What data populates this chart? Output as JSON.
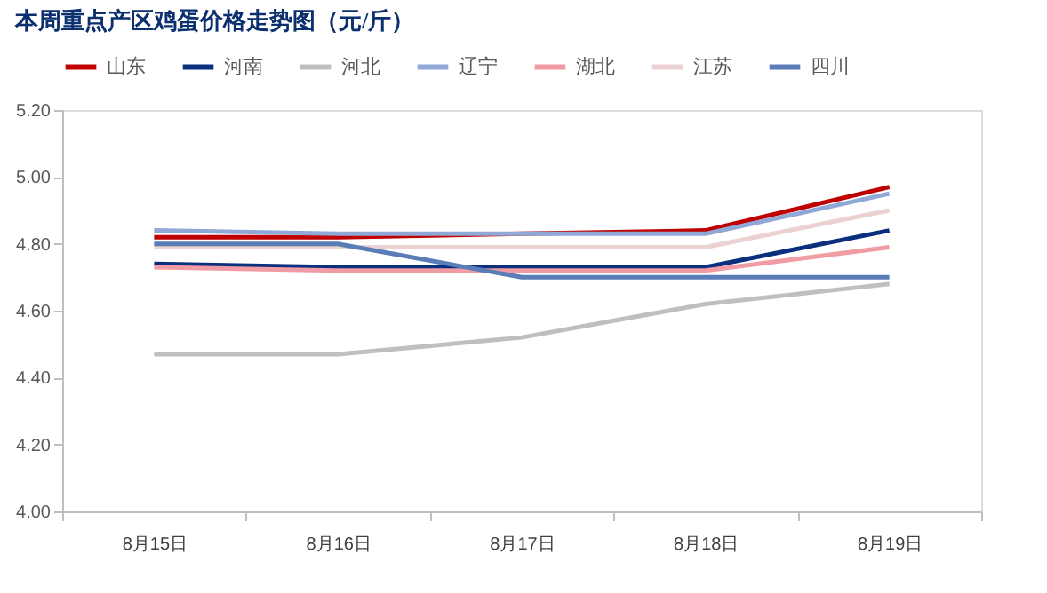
{
  "chart_data": {
    "type": "line",
    "title": "本周重点产区鸡蛋价格走势图（元/斤）",
    "categories": [
      "8月15日",
      "8月16日",
      "8月17日",
      "8月18日",
      "8月19日"
    ],
    "series": [
      {
        "name": "山东",
        "color": "#c00000",
        "values": [
          4.82,
          4.82,
          4.83,
          4.84,
          4.97
        ]
      },
      {
        "name": "河南",
        "color": "#0b2f7f",
        "values": [
          4.74,
          4.73,
          4.73,
          4.73,
          4.84
        ]
      },
      {
        "name": "河北",
        "color": "#bfbfbf",
        "values": [
          4.47,
          4.47,
          4.52,
          4.62,
          4.68
        ]
      },
      {
        "name": "辽宁",
        "color": "#8fa8d6",
        "values": [
          4.84,
          4.83,
          4.83,
          4.83,
          4.95
        ]
      },
      {
        "name": "湖北",
        "color": "#f19ba4",
        "values": [
          4.73,
          4.72,
          4.72,
          4.72,
          4.79
        ]
      },
      {
        "name": "江苏",
        "color": "#ecd1d3",
        "values": [
          4.79,
          4.79,
          4.79,
          4.79,
          4.9
        ]
      },
      {
        "name": "四川",
        "color": "#5a7db8",
        "values": [
          4.8,
          4.8,
          4.7,
          4.7,
          4.7
        ]
      }
    ],
    "ylim": [
      4.0,
      5.2
    ],
    "yticks": [
      {
        "value": 4.0,
        "label": "4.00"
      },
      {
        "value": 4.2,
        "label": "4.20"
      },
      {
        "value": 4.4,
        "label": "4.40"
      },
      {
        "value": 4.6,
        "label": "4.60"
      },
      {
        "value": 4.8,
        "label": "4.80"
      },
      {
        "value": 5.0,
        "label": "5.00"
      },
      {
        "value": 5.2,
        "label": "5.20"
      }
    ],
    "grid": false,
    "legend": "top",
    "marker": "none",
    "line_style": "solid"
  }
}
